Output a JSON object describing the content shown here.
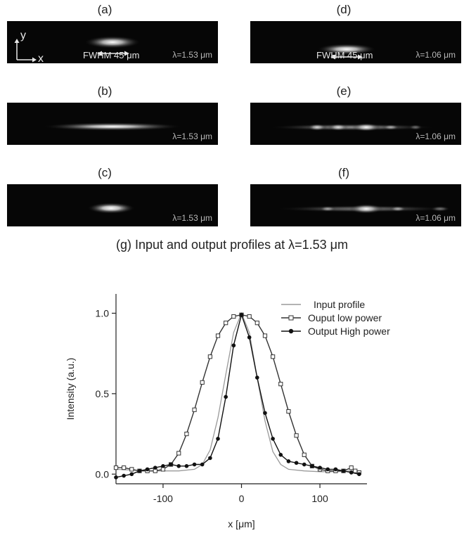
{
  "panels": [
    {
      "label": "(a)",
      "lambda": "λ=1.53 μm",
      "fwhm": "FWHM 45 μm",
      "axis_y": "y",
      "axis_x": "x"
    },
    {
      "label": "(b)",
      "lambda": "λ=1.53 μm"
    },
    {
      "label": "(c)",
      "lambda": "λ=1.53 μm"
    },
    {
      "label": "(d)",
      "lambda": "λ=1.06 μm",
      "fwhm": "FWHM 45 μm"
    },
    {
      "label": "(e)",
      "lambda": "λ=1.06 μm"
    },
    {
      "label": "(f)",
      "lambda": "λ=1.06 μm"
    }
  ],
  "chart_data": {
    "type": "line",
    "title": "(g) Input and output profiles at λ=1.53 μm",
    "xlabel": "x [μm]",
    "ylabel": "Intensity (a.u.)",
    "xlim": [
      -160,
      160
    ],
    "ylim": [
      -0.06,
      1.12
    ],
    "xticks": [
      -100,
      0,
      100
    ],
    "yticks": [
      0.0,
      0.5,
      1.0
    ],
    "xtick_labels": [
      "-100",
      "0",
      "100"
    ],
    "ytick_labels": [
      "0.0",
      "0.5",
      "1.0"
    ],
    "grid": false,
    "legend_position": "top-right",
    "series": [
      {
        "name": "Input profile",
        "color": "#9a9a9a",
        "marker": "none",
        "x": [
          -160,
          -140,
          -120,
          -100,
          -80,
          -60,
          -50,
          -40,
          -30,
          -20,
          -10,
          0,
          10,
          20,
          30,
          40,
          50,
          60,
          80,
          100,
          120,
          140,
          150
        ],
        "y": [
          0.03,
          0.025,
          0.02,
          0.02,
          0.02,
          0.03,
          0.06,
          0.15,
          0.35,
          0.62,
          0.88,
          1.0,
          0.88,
          0.6,
          0.33,
          0.14,
          0.06,
          0.03,
          0.02,
          0.015,
          0.015,
          0.02,
          0.02
        ]
      },
      {
        "name": "Ouput low power",
        "color": "#333333",
        "marker": "open-square",
        "x": [
          -160,
          -150,
          -140,
          -130,
          -120,
          -110,
          -100,
          -90,
          -80,
          -70,
          -60,
          -50,
          -40,
          -30,
          -20,
          -10,
          0,
          10,
          20,
          30,
          40,
          50,
          60,
          70,
          80,
          90,
          100,
          110,
          120,
          130,
          140,
          145,
          150
        ],
        "y": [
          0.04,
          0.04,
          0.03,
          0.02,
          0.02,
          0.02,
          0.03,
          0.06,
          0.13,
          0.25,
          0.4,
          0.57,
          0.73,
          0.86,
          0.94,
          0.98,
          0.99,
          0.98,
          0.94,
          0.86,
          0.73,
          0.56,
          0.39,
          0.24,
          0.12,
          0.05,
          0.03,
          0.02,
          0.02,
          0.02,
          0.04,
          0.02,
          0.01
        ]
      },
      {
        "name": "Output High power",
        "color": "#111111",
        "marker": "filled-circle",
        "x": [
          -160,
          -150,
          -140,
          -130,
          -120,
          -110,
          -100,
          -90,
          -80,
          -70,
          -60,
          -50,
          -40,
          -30,
          -20,
          -10,
          0,
          10,
          20,
          30,
          40,
          50,
          60,
          70,
          80,
          90,
          100,
          110,
          120,
          130,
          140,
          150
        ],
        "y": [
          -0.02,
          -0.01,
          0.0,
          0.02,
          0.03,
          0.04,
          0.05,
          0.06,
          0.05,
          0.05,
          0.06,
          0.06,
          0.1,
          0.22,
          0.48,
          0.8,
          0.99,
          0.85,
          0.6,
          0.38,
          0.22,
          0.12,
          0.08,
          0.07,
          0.06,
          0.05,
          0.04,
          0.03,
          0.03,
          0.02,
          0.01,
          0.0
        ]
      }
    ]
  }
}
